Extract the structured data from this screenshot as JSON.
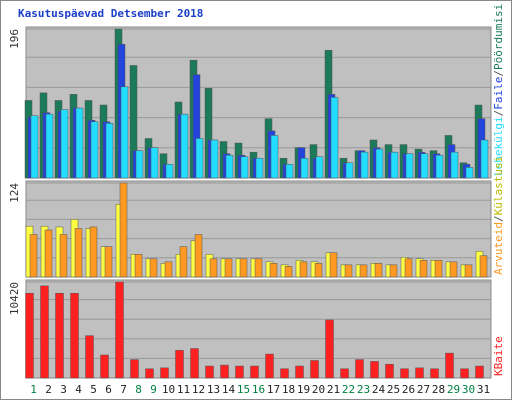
{
  "chart_data": [
    {
      "type": "bar",
      "title": "Kasutuspäevad Detsember 2018",
      "separator": "/",
      "categories": [
        "1",
        "2",
        "3",
        "4",
        "5",
        "6",
        "7",
        "8",
        "9",
        "10",
        "11",
        "12",
        "13",
        "14",
        "15",
        "16",
        "17",
        "18",
        "19",
        "20",
        "21",
        "22",
        "23",
        "24",
        "25",
        "26",
        "27",
        "28",
        "29",
        "30",
        "31"
      ],
      "weekend_color": "#008040",
      "weekend_days": [
        1,
        8,
        9,
        15,
        16,
        22,
        23,
        29,
        30
      ],
      "ylim": [
        0,
        196
      ],
      "yticks": [
        196
      ],
      "series": [
        {
          "name": "Pöördumisi",
          "color": "#1b7a5a",
          "values": [
            102,
            112,
            102,
            110,
            102,
            96,
            196,
            148,
            52,
            32,
            100,
            155,
            118,
            48,
            46,
            34,
            78,
            26,
            40,
            44,
            168,
            26,
            36,
            50,
            44,
            44,
            38,
            36,
            56,
            20,
            96
          ]
        },
        {
          "name": "Faile",
          "color": "#2244dd",
          "values": [
            80,
            86,
            88,
            92,
            76,
            74,
            176,
            36,
            40,
            18,
            84,
            136,
            50,
            32,
            30,
            26,
            62,
            18,
            40,
            26,
            110,
            20,
            36,
            40,
            34,
            32,
            34,
            32,
            44,
            18,
            78
          ]
        },
        {
          "name": "Lehekülgi",
          "color": "#22ddff",
          "values": [
            82,
            84,
            90,
            92,
            74,
            72,
            120,
            36,
            40,
            18,
            84,
            52,
            50,
            30,
            28,
            26,
            56,
            18,
            26,
            28,
            106,
            20,
            34,
            38,
            34,
            32,
            32,
            30,
            34,
            14,
            50
          ]
        }
      ]
    },
    {
      "type": "bar",
      "ylim": [
        0,
        124
      ],
      "yticks": [
        124
      ],
      "series": [
        {
          "name": "Külastusi",
          "color": "#ffff44",
          "values": [
            67,
            67,
            66,
            76,
            64,
            40,
            96,
            30,
            24,
            18,
            30,
            48,
            30,
            24,
            24,
            24,
            20,
            16,
            22,
            20,
            32,
            16,
            16,
            18,
            16,
            26,
            24,
            22,
            20,
            16,
            34
          ]
        },
        {
          "name": "Arvuteid",
          "color": "#ff9922",
          "values": [
            56,
            62,
            56,
            64,
            66,
            40,
            124,
            30,
            24,
            20,
            40,
            56,
            24,
            24,
            24,
            24,
            18,
            14,
            20,
            18,
            32,
            16,
            16,
            18,
            16,
            24,
            22,
            22,
            20,
            16,
            28
          ]
        }
      ]
    },
    {
      "type": "bar",
      "ylim": [
        0,
        10420
      ],
      "yticks": [
        10420
      ],
      "series": [
        {
          "name": "KBaite",
          "color": "#ff2020",
          "values": [
            9200,
            10000,
            9200,
            9200,
            4600,
            2500,
            10420,
            2000,
            1000,
            1100,
            3000,
            3200,
            1300,
            1400,
            1300,
            1300,
            2600,
            1000,
            1300,
            1900,
            6300,
            1000,
            2000,
            1800,
            1500,
            1000,
            1100,
            1000,
            2700,
            1000,
            1300
          ]
        }
      ]
    }
  ]
}
